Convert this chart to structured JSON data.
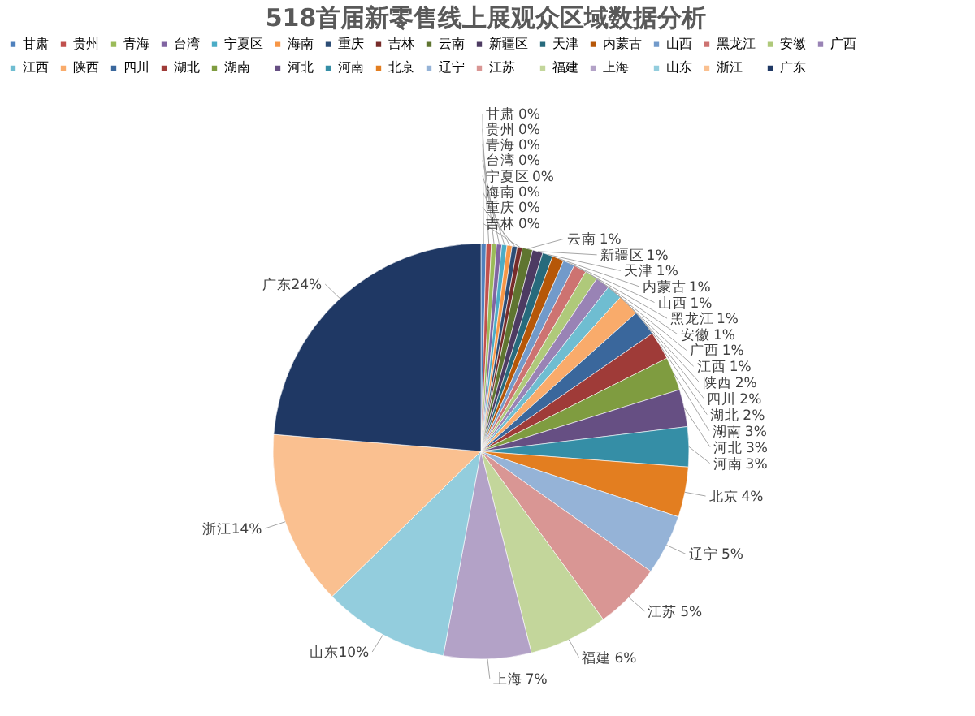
{
  "chart_data": {
    "type": "pie",
    "title": "518首届新零售线上展观众区域数据分析",
    "categories": [
      "甘肃",
      "贵州",
      "青海",
      "台湾",
      "宁夏区",
      "海南",
      "重庆",
      "吉林",
      "云南",
      "新疆区",
      "天津",
      "内蒙古",
      "山西",
      "黑龙江",
      "安徽",
      "广西",
      "江西",
      "陕西",
      "四川",
      "湖北",
      "湖南",
      "河北",
      "河南",
      "北京",
      "辽宁",
      "江苏",
      "福建",
      "上海",
      "山东",
      "浙江",
      "广东"
    ],
    "values": [
      0.4,
      0.4,
      0.4,
      0.4,
      0.4,
      0.4,
      0.4,
      0.4,
      0.8,
      0.8,
      0.8,
      0.9,
      0.9,
      1.0,
      1.0,
      1.1,
      1.2,
      1.7,
      2.0,
      2.2,
      2.6,
      2.9,
      3.1,
      3.9,
      4.7,
      5.2,
      6.1,
      6.8,
      9.8,
      13.6,
      23.7
    ],
    "value_labels": [
      "0%",
      "0%",
      "0%",
      "0%",
      "0%",
      "0%",
      "0%",
      "0%",
      "1%",
      "1%",
      "1%",
      "1%",
      "1%",
      "1%",
      "1%",
      "1%",
      "1%",
      "2%",
      "2%",
      "2%",
      "3%",
      "3%",
      "3%",
      "4%",
      "5%",
      "5%",
      "6%",
      "7%",
      "10%",
      "14%",
      "24%"
    ],
    "colors": [
      "#4f81bd",
      "#c0504d",
      "#9bbb59",
      "#8064a2",
      "#4bacc6",
      "#f79646",
      "#2c4d75",
      "#772c2a",
      "#5f7530",
      "#4d3b62",
      "#276a7c",
      "#b65708",
      "#729aca",
      "#cd7371",
      "#afc97a",
      "#9983b5",
      "#6fbdd1",
      "#f9ab6b",
      "#3a679c",
      "#9f3b38",
      "#7f9c40",
      "#664f83",
      "#358ea6",
      "#e37e20",
      "#95b3d7",
      "#d99694",
      "#c3d69b",
      "#b3a2c7",
      "#93cddd",
      "#fac090",
      "#1f3864"
    ],
    "legend": "top"
  }
}
